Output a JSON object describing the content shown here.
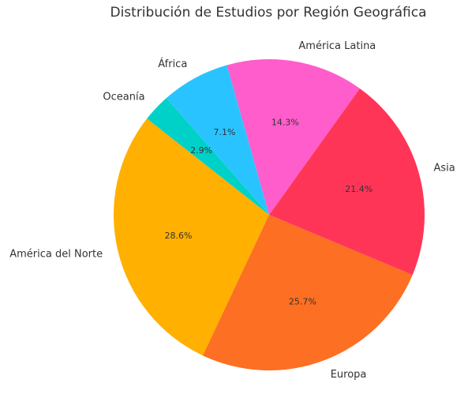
{
  "chart_data": {
    "type": "pie",
    "title": "Distribución de Estudios por Región Geográfica",
    "slices": [
      {
        "label": "América del Norte",
        "value": 28.6,
        "pct_label": "28.6%",
        "color": "#FFB000"
      },
      {
        "label": "Europa",
        "value": 25.7,
        "pct_label": "25.7%",
        "color": "#FD6F22"
      },
      {
        "label": "Asia",
        "value": 21.4,
        "pct_label": "21.4%",
        "color": "#FF3558"
      },
      {
        "label": "América Latina",
        "value": 14.3,
        "pct_label": "14.3%",
        "color": "#FF5DCB"
      },
      {
        "label": "África",
        "value": 7.1,
        "pct_label": "7.1%",
        "color": "#29C4FF"
      },
      {
        "label": "Oceanía",
        "value": 2.9,
        "pct_label": "2.9%",
        "color": "#00D1C8"
      }
    ]
  }
}
